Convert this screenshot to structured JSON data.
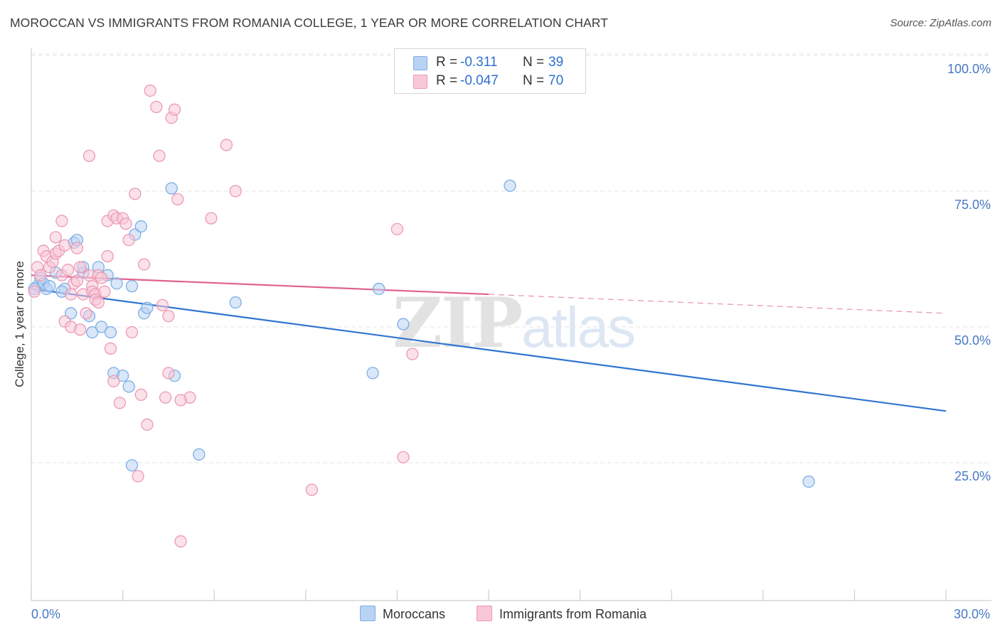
{
  "title": "MOROCCAN VS IMMIGRANTS FROM ROMANIA COLLEGE, 1 YEAR OR MORE CORRELATION CHART",
  "source": "Source: ZipAtlas.com",
  "watermark": {
    "zip": "ZIP",
    "atlas": "atlas"
  },
  "legend": {
    "r_label": "R =",
    "n_label": "N =",
    "rows": [
      {
        "r": "-0.311",
        "n": "39"
      },
      {
        "r": "-0.047",
        "n": "70"
      }
    ]
  },
  "colors": {
    "blue_fill": "#b9d3f3",
    "blue_stroke": "#7eaee6",
    "blue_line": "#2f74d0",
    "pink_fill": "#f8c8d7",
    "pink_stroke": "#ec9ab4",
    "pink_line": "#e0628e",
    "tick_label": "#4779c4",
    "grid": "#e6e6e6",
    "axis": "#cfcfcf"
  },
  "chart_data": {
    "type": "scatter",
    "title": "MOROCCAN VS IMMIGRANTS FROM ROMANIA COLLEGE, 1 YEAR OR MORE CORRELATION CHART",
    "xlabel": "",
    "ylabel": "College, 1 year or more",
    "xlim": [
      0,
      30
    ],
    "ylim": [
      0,
      102
    ],
    "x_tick_labels": [
      {
        "value": 0,
        "label": "0.0%"
      },
      {
        "value": 30,
        "label": "30.0%"
      }
    ],
    "y_tick_labels": [
      {
        "value": 25,
        "label": "25.0%"
      },
      {
        "value": 50,
        "label": "50.0%"
      },
      {
        "value": 75,
        "label": "75.0%"
      },
      {
        "value": 100,
        "label": "100.0%"
      }
    ],
    "x_minor_ticks": [
      0,
      3,
      6,
      9,
      12,
      15,
      18,
      21,
      24,
      27,
      30
    ],
    "grid": true,
    "series": [
      {
        "name": "Moroccans",
        "color": "blue",
        "trend": {
          "x": [
            0,
            30
          ],
          "y": [
            59.5,
            37.0
          ],
          "solid_until": 30
        },
        "points": [
          [
            0.2,
            60.0
          ],
          [
            0.3,
            61.5
          ],
          [
            0.4,
            60.5
          ],
          [
            0.5,
            59.5
          ],
          [
            0.8,
            62.5
          ],
          [
            1.1,
            59.5
          ],
          [
            1.3,
            55.0
          ],
          [
            1.4,
            68.0
          ],
          [
            1.5,
            68.5
          ],
          [
            1.7,
            62.5
          ],
          [
            1.7,
            63.5
          ],
          [
            1.9,
            54.5
          ],
          [
            2.0,
            51.5
          ],
          [
            2.2,
            63.5
          ],
          [
            2.3,
            52.5
          ],
          [
            2.5,
            62.0
          ],
          [
            2.6,
            51.5
          ],
          [
            2.7,
            44.0
          ],
          [
            2.8,
            60.5
          ],
          [
            3.0,
            43.5
          ],
          [
            3.2,
            41.5
          ],
          [
            3.3,
            27.0
          ],
          [
            3.3,
            60.0
          ],
          [
            3.4,
            69.5
          ],
          [
            3.6,
            71.0
          ],
          [
            3.7,
            55.0
          ],
          [
            3.8,
            56.0
          ],
          [
            4.6,
            78.0
          ],
          [
            4.7,
            43.5
          ],
          [
            5.5,
            29.0
          ],
          [
            6.7,
            57.0
          ],
          [
            11.2,
            44.0
          ],
          [
            11.4,
            59.5
          ],
          [
            12.2,
            53.0
          ],
          [
            15.7,
            78.5
          ],
          [
            25.5,
            24.0
          ],
          [
            0.1,
            59.5
          ],
          [
            0.6,
            60.0
          ],
          [
            1.0,
            59.0
          ]
        ]
      },
      {
        "name": "Immigrants from Romania",
        "color": "pink",
        "trend": {
          "x": [
            0,
            30
          ],
          "y": [
            62.0,
            55.0
          ],
          "solid_until": 15.0
        },
        "points": [
          [
            0.1,
            59.0
          ],
          [
            0.2,
            63.5
          ],
          [
            0.3,
            62.0
          ],
          [
            0.4,
            66.5
          ],
          [
            0.5,
            65.5
          ],
          [
            0.6,
            63.5
          ],
          [
            0.7,
            64.5
          ],
          [
            0.8,
            69.0
          ],
          [
            0.8,
            66.0
          ],
          [
            0.9,
            66.5
          ],
          [
            1.0,
            62.0
          ],
          [
            1.0,
            72.0
          ],
          [
            1.1,
            53.5
          ],
          [
            1.1,
            67.5
          ],
          [
            1.2,
            63.0
          ],
          [
            1.3,
            52.5
          ],
          [
            1.3,
            58.5
          ],
          [
            1.4,
            60.5
          ],
          [
            1.5,
            67.0
          ],
          [
            1.5,
            61.0
          ],
          [
            1.6,
            63.5
          ],
          [
            1.7,
            58.5
          ],
          [
            1.8,
            55.0
          ],
          [
            1.9,
            62.0
          ],
          [
            1.9,
            84.0
          ],
          [
            2.0,
            60.0
          ],
          [
            2.0,
            59.0
          ],
          [
            2.1,
            58.5
          ],
          [
            2.1,
            57.5
          ],
          [
            2.2,
            62.0
          ],
          [
            2.3,
            61.5
          ],
          [
            2.4,
            59.0
          ],
          [
            2.5,
            72.0
          ],
          [
            2.5,
            65.5
          ],
          [
            2.6,
            48.5
          ],
          [
            2.7,
            42.5
          ],
          [
            2.7,
            73.0
          ],
          [
            2.8,
            72.5
          ],
          [
            2.9,
            38.5
          ],
          [
            3.0,
            72.5
          ],
          [
            3.1,
            71.5
          ],
          [
            3.2,
            68.5
          ],
          [
            3.3,
            51.5
          ],
          [
            3.4,
            77.0
          ],
          [
            3.5,
            25.0
          ],
          [
            3.6,
            40.0
          ],
          [
            3.7,
            64.0
          ],
          [
            3.8,
            34.5
          ],
          [
            3.9,
            96.0
          ],
          [
            4.1,
            93.0
          ],
          [
            4.2,
            84.0
          ],
          [
            4.3,
            56.5
          ],
          [
            4.4,
            39.5
          ],
          [
            4.5,
            54.5
          ],
          [
            4.5,
            44.0
          ],
          [
            4.6,
            91.0
          ],
          [
            4.7,
            92.5
          ],
          [
            4.8,
            76.0
          ],
          [
            4.9,
            13.0
          ],
          [
            5.2,
            39.5
          ],
          [
            5.9,
            72.5
          ],
          [
            6.4,
            86.0
          ],
          [
            6.7,
            77.5
          ],
          [
            9.2,
            22.5
          ],
          [
            12.0,
            70.5
          ],
          [
            12.2,
            28.5
          ],
          [
            12.5,
            47.5
          ],
          [
            4.9,
            39.0
          ],
          [
            2.2,
            57.0
          ],
          [
            1.6,
            52.0
          ]
        ]
      }
    ]
  }
}
